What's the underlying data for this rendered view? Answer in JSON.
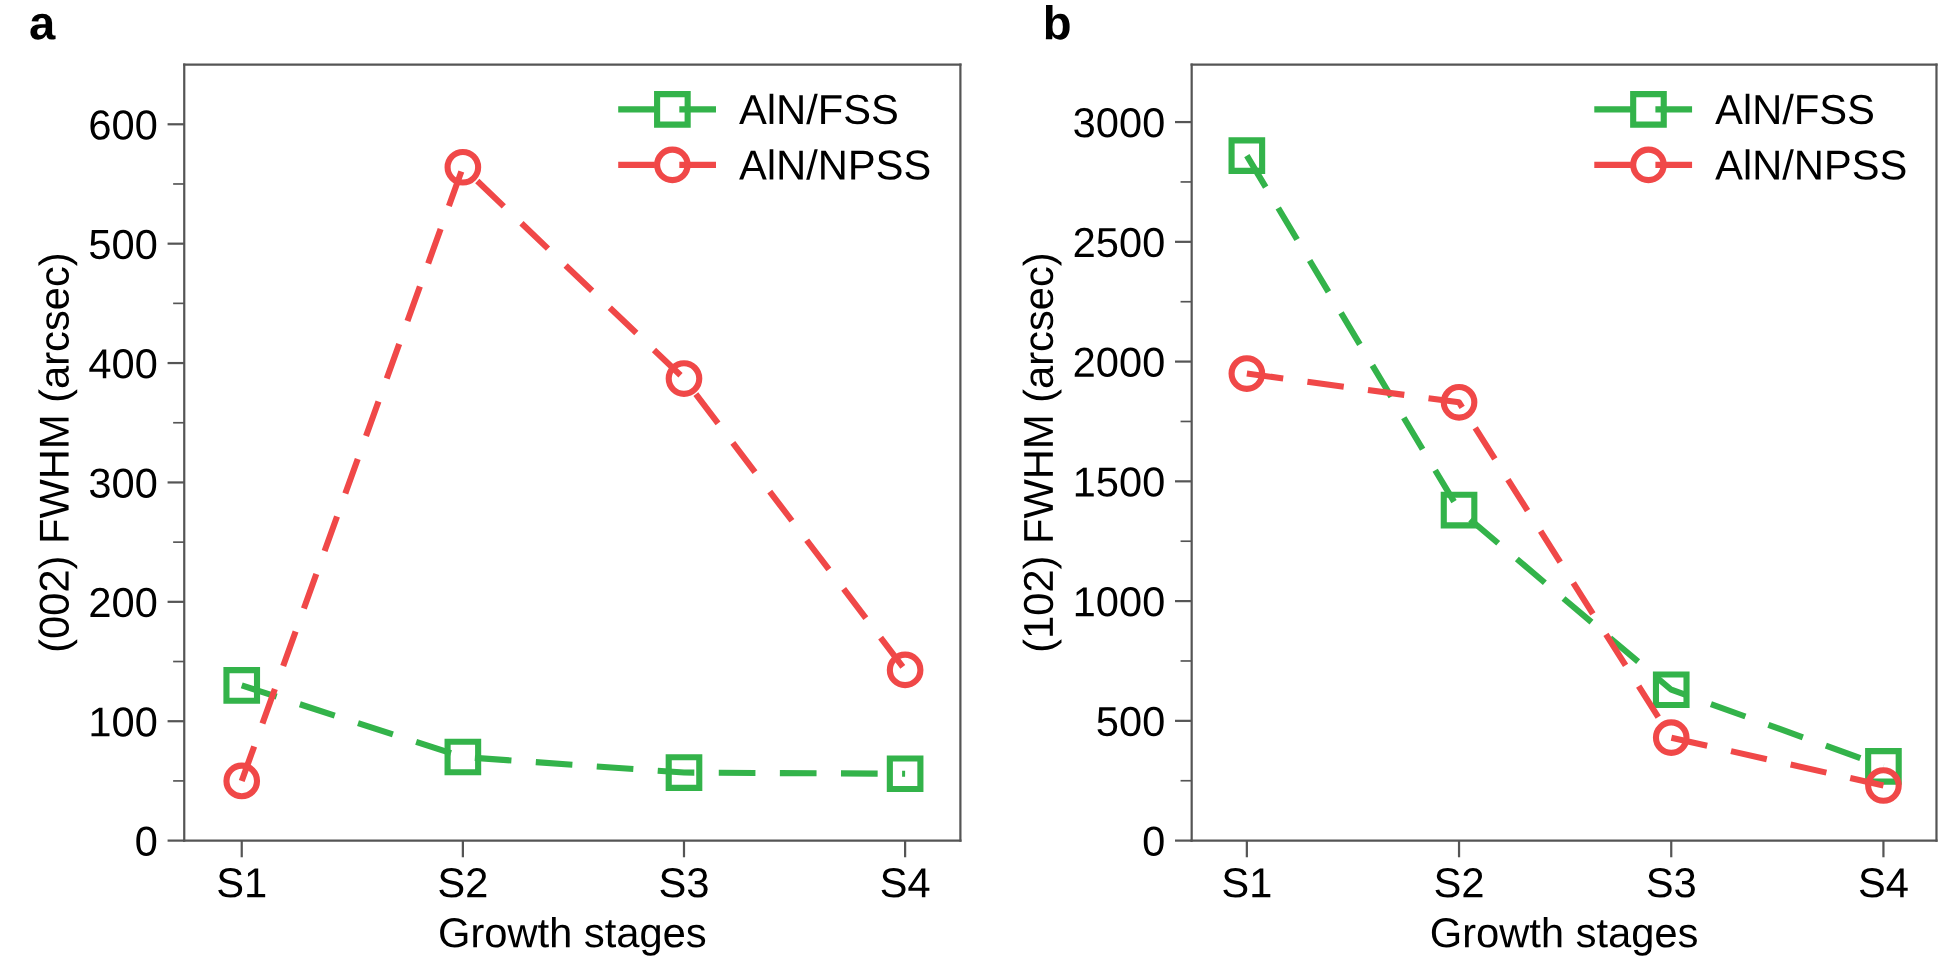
{
  "chart_data": [
    {
      "type": "line",
      "title": "a",
      "xlabel": "Growth stages",
      "ylabel": "(002) FWHM (arcsec)",
      "categories": [
        "S1",
        "S2",
        "S3",
        "S4"
      ],
      "ylim": [
        0,
        650
      ],
      "yticks": [
        0,
        {
          "value": 50,
          "label": null
        },
        100,
        {
          "value": 150,
          "label": null
        },
        200,
        {
          "value": 250,
          "label": null
        },
        300,
        {
          "value": 350,
          "label": null
        },
        400,
        {
          "value": 450,
          "label": null
        },
        500,
        {
          "value": 550,
          "label": null
        },
        600
      ],
      "legend": "top right",
      "line_style": "dashed",
      "series": [
        {
          "name": "AlN/FSS",
          "color": "#33b34a",
          "marker": "square",
          "values": [
            130,
            70,
            57,
            56
          ]
        },
        {
          "name": "AlN/NPSS",
          "color": "#f04848",
          "marker": "circle",
          "values": [
            50,
            564,
            387,
            143
          ]
        }
      ]
    },
    {
      "type": "line",
      "title": "b",
      "xlabel": "Growth stages",
      "ylabel": "(102) FWHM (arcsec)",
      "categories": [
        "S1",
        "S2",
        "S3",
        "S4"
      ],
      "ylim": [
        0,
        3240
      ],
      "yticks": [
        0,
        {
          "value": 250,
          "label": null
        },
        500,
        {
          "value": 750,
          "label": null
        },
        1000,
        {
          "value": 1250,
          "label": null
        },
        1500,
        {
          "value": 1750,
          "label": null
        },
        2000,
        {
          "value": 2250,
          "label": null
        },
        2500,
        {
          "value": 2750,
          "label": null
        },
        3000
      ],
      "legend": "top right",
      "line_style": "dashed",
      "series": [
        {
          "name": "AlN/FSS",
          "color": "#33b34a",
          "marker": "square",
          "values": [
            2860,
            1380,
            630,
            310
          ]
        },
        {
          "name": "AlN/NPSS",
          "color": "#f04848",
          "marker": "circle",
          "values": [
            1950,
            1830,
            430,
            230
          ]
        }
      ]
    }
  ]
}
